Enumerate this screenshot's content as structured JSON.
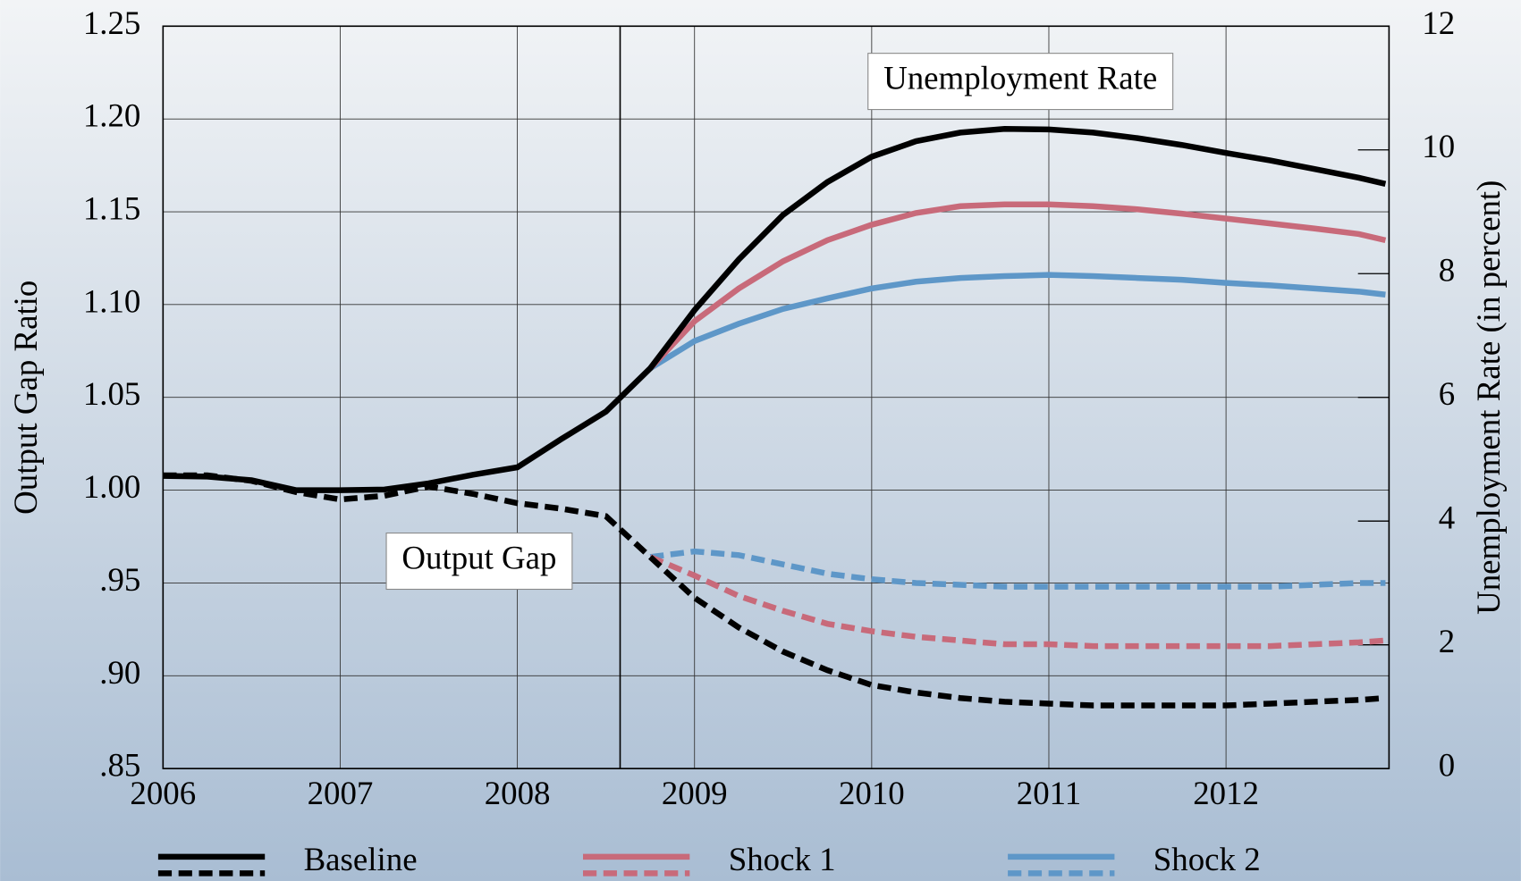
{
  "chart_data": {
    "type": "line",
    "x": [
      2006.0,
      2006.25,
      2006.5,
      2006.75,
      2007.0,
      2007.25,
      2007.5,
      2007.75,
      2008.0,
      2008.25,
      2008.5,
      2008.75,
      2009.0,
      2009.25,
      2009.5,
      2009.75,
      2010.0,
      2010.25,
      2010.5,
      2010.75,
      2011.0,
      2011.25,
      2011.5,
      2011.75,
      2012.0,
      2012.25,
      2012.5,
      2012.75,
      2012.9
    ],
    "xlim": [
      2006,
      2012.92
    ],
    "xticks": [
      2006,
      2007,
      2008,
      2009,
      2010,
      2011,
      2012
    ],
    "ylabel": "Output Gap Ratio",
    "ylim": [
      0.85,
      1.25
    ],
    "yticks": [
      {
        "value": 0.85,
        "label": ".85"
      },
      {
        "value": 0.9,
        "label": ".90"
      },
      {
        "value": 0.95,
        "label": ".95"
      },
      {
        "value": 1.0,
        "label": "1.00"
      },
      1.05,
      {
        "value": 1.1,
        "label": "1.10"
      },
      1.15,
      {
        "value": 1.2,
        "label": "1.20"
      },
      1.25
    ],
    "y2label": "Unemployment Rate (in percent)",
    "y2lim": [
      0,
      12
    ],
    "y2ticks": [
      0,
      2,
      4,
      6,
      8,
      10,
      12
    ],
    "vertical_line": 2008.58,
    "grid": true,
    "annotations": [
      "Unemployment Rate",
      "Output Gap"
    ],
    "groups": [
      {
        "name": "Baseline",
        "color": "#000000",
        "unemployment": [
          4.73,
          4.72,
          4.66,
          4.5,
          4.5,
          4.51,
          4.61,
          4.75,
          4.87,
          5.33,
          5.77,
          6.47,
          7.41,
          8.23,
          8.95,
          9.48,
          9.89,
          10.14,
          10.28,
          10.34,
          10.33,
          10.28,
          10.19,
          10.08,
          9.95,
          9.83,
          9.69,
          9.55,
          9.45
        ],
        "output_gap": [
          1.008,
          1.008,
          1.005,
          0.999,
          0.995,
          0.997,
          1.002,
          0.998,
          0.993,
          0.99,
          0.986,
          0.964,
          0.942,
          0.926,
          0.913,
          0.903,
          0.895,
          0.891,
          0.888,
          0.886,
          0.885,
          0.884,
          0.884,
          0.884,
          0.884,
          0.885,
          0.886,
          0.887,
          0.888
        ]
      },
      {
        "name": "Shock 1",
        "color": "#c86a7a",
        "unemployment": [
          null,
          null,
          null,
          null,
          null,
          null,
          null,
          null,
          null,
          null,
          null,
          6.47,
          7.23,
          7.76,
          8.2,
          8.54,
          8.79,
          8.98,
          9.09,
          9.12,
          9.12,
          9.09,
          9.04,
          8.97,
          8.89,
          8.81,
          8.73,
          8.64,
          8.54
        ],
        "output_gap": [
          null,
          null,
          null,
          null,
          null,
          null,
          null,
          null,
          null,
          null,
          null,
          0.964,
          0.954,
          0.943,
          0.935,
          0.928,
          0.924,
          0.921,
          0.919,
          0.917,
          0.917,
          0.916,
          0.916,
          0.916,
          0.916,
          0.916,
          0.917,
          0.918,
          0.919
        ]
      },
      {
        "name": "Shock 2",
        "color": "#5e97c8",
        "unemployment": [
          null,
          null,
          null,
          null,
          null,
          null,
          null,
          null,
          null,
          null,
          null,
          6.47,
          6.91,
          7.19,
          7.43,
          7.6,
          7.76,
          7.87,
          7.93,
          7.96,
          7.98,
          7.96,
          7.93,
          7.9,
          7.85,
          7.81,
          7.76,
          7.71,
          7.66
        ],
        "output_gap": [
          null,
          null,
          null,
          null,
          null,
          null,
          null,
          null,
          null,
          null,
          null,
          0.964,
          0.967,
          0.965,
          0.96,
          0.955,
          0.952,
          0.95,
          0.949,
          0.948,
          0.948,
          0.948,
          0.948,
          0.948,
          0.948,
          0.948,
          0.949,
          0.95,
          0.95
        ]
      }
    ]
  }
}
